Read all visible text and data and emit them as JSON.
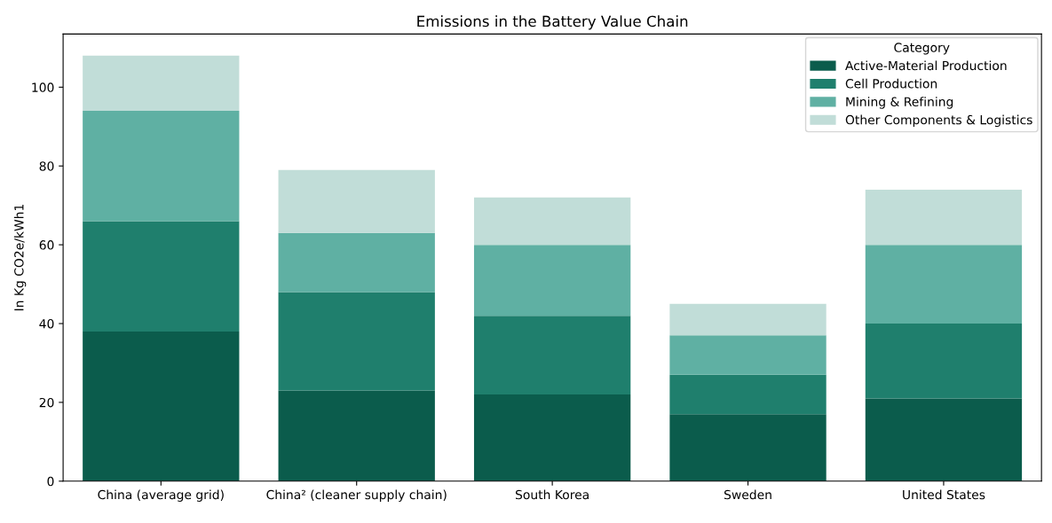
{
  "chart_data": {
    "type": "bar",
    "title": "Emissions in the Battery Value Chain",
    "ylabel": "In Kg CO2e/kWh1",
    "legend_title": "Category",
    "categories": [
      "China (average grid)",
      "China² (cleaner supply chain)",
      "South Korea",
      "Sweden",
      "United States"
    ],
    "stacked": true,
    "legend": "top right",
    "grid": false,
    "ylim": [
      0,
      113.5
    ],
    "yticks": [
      0,
      20,
      40,
      60,
      80,
      100
    ],
    "series": [
      {
        "name": "Active-Material Production",
        "color": "#0b5c4c",
        "values": [
          38,
          23,
          22,
          17,
          21
        ]
      },
      {
        "name": "Cell Production",
        "color": "#1f7f6d",
        "values": [
          28,
          25,
          20,
          10,
          19
        ]
      },
      {
        "name": "Mining & Refining",
        "color": "#5fb0a3",
        "values": [
          28,
          15,
          18,
          10,
          20
        ]
      },
      {
        "name": "Other Components & Logistics",
        "color": "#c1ddd8",
        "values": [
          14,
          16,
          12,
          8,
          14
        ]
      }
    ]
  }
}
